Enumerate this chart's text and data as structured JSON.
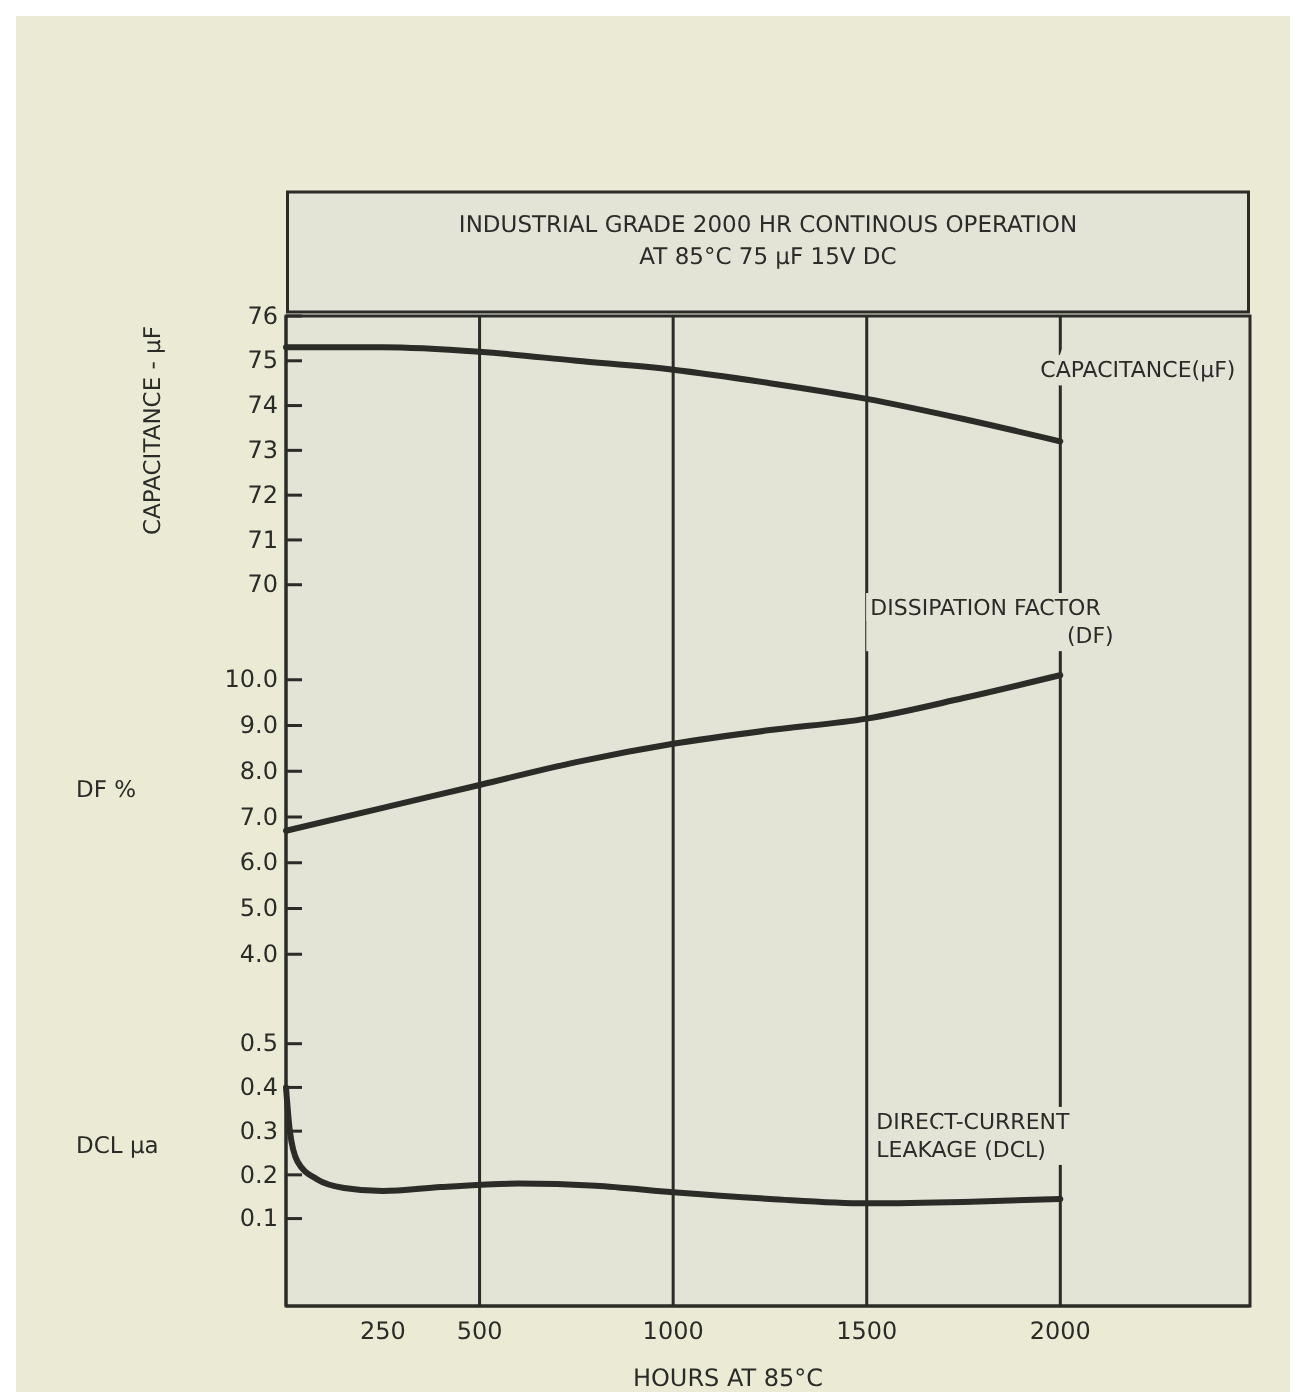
{
  "chart_data": [
    {
      "type": "line",
      "title": "INDUSTRIAL GRADE 2000 HR CONTINOUS OPERATION\nAT 85°C  75 µF  15V DC",
      "ylabel": "CAPACITANCE - µF",
      "xlim": [
        0,
        2490
      ],
      "ylim": [
        68.9,
        76
      ],
      "yticks": [
        70,
        71,
        72,
        73,
        74,
        75,
        76
      ],
      "tick_labels": "y",
      "ref_lines": [
        {
          "axis": "x",
          "value": 500
        },
        {
          "axis": "x",
          "value": 1000
        },
        {
          "axis": "x",
          "value": 1500
        },
        {
          "axis": "x",
          "value": 2000
        }
      ],
      "series": [
        {
          "name": "CAPACITANCE(µF)",
          "color": "#2b2b28",
          "x": [
            0,
            250,
            500,
            750,
            1000,
            1250,
            1500,
            1750,
            2000
          ],
          "values": [
            75.3,
            75.3,
            75.2,
            75.0,
            74.8,
            74.5,
            74.15,
            73.7,
            73.2
          ]
        }
      ]
    },
    {
      "type": "line",
      "ylabel": "DF %",
      "xlim": [
        0,
        2490
      ],
      "ylim": [
        3.0,
        11.0
      ],
      "yticks": [
        {
          "value": 4,
          "label": "4.0"
        },
        {
          "value": 5,
          "label": "5.0"
        },
        {
          "value": 6,
          "label": "6.0"
        },
        {
          "value": 7,
          "label": "7.0"
        },
        {
          "value": 8,
          "label": "8.0"
        },
        {
          "value": 9,
          "label": "9.0"
        },
        {
          "value": 10,
          "label": "10.0"
        }
      ],
      "tick_labels": "y",
      "ref_lines": [
        {
          "axis": "x",
          "value": 500
        },
        {
          "axis": "x",
          "value": 1000
        },
        {
          "axis": "x",
          "value": 1500
        },
        {
          "axis": "x",
          "value": 2000
        }
      ],
      "series": [
        {
          "name": "DISSIPATION FACTOR\n(DF)",
          "color": "#2b2b28",
          "x": [
            0,
            250,
            500,
            750,
            1000,
            1250,
            1500,
            1750,
            2000
          ],
          "values": [
            6.7,
            7.2,
            7.7,
            8.2,
            8.6,
            8.9,
            9.15,
            9.6,
            10.1
          ]
        }
      ]
    },
    {
      "type": "line",
      "ylabel": "DCL µa",
      "xlabel": "HOURS AT 85°C",
      "xlim": [
        0,
        2490
      ],
      "ylim": [
        -0.1,
        0.6
      ],
      "yticks": [
        0.1,
        0.2,
        0.3,
        0.4,
        0.5
      ],
      "xticks": [
        250,
        500,
        1000,
        1500,
        2000
      ],
      "ref_lines": [
        {
          "axis": "x",
          "value": 500
        },
        {
          "axis": "x",
          "value": 1000
        },
        {
          "axis": "x",
          "value": 1500
        },
        {
          "axis": "x",
          "value": 2000
        }
      ],
      "series": [
        {
          "name": "DIRECT-CURRENT\nLEAKAGE (DCL)",
          "color": "#2b2b28",
          "x": [
            0,
            10,
            30,
            80,
            150,
            250,
            400,
            600,
            800,
            1000,
            1250,
            1500,
            1750,
            2000
          ],
          "values": [
            0.4,
            0.3,
            0.23,
            0.19,
            0.17,
            0.163,
            0.172,
            0.18,
            0.175,
            0.16,
            0.145,
            0.135,
            0.138,
            0.145
          ]
        }
      ]
    }
  ]
}
